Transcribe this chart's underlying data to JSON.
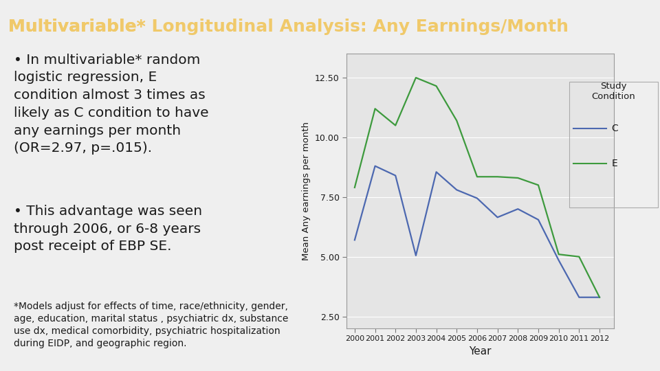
{
  "title_part1": "Multivariable* ",
  "title_underline": "Longitudinal Analysis",
  "title_part2": ": Any Earnings/Month",
  "title_color": "#F0C96A",
  "title_bg_color": "#8B0000",
  "bullet_text_1": "In multivariable* random\nlogistic regression, E\ncondition almost 3 times as\nlikely as C condition to have\nany earnings per month\n(OR=2.97, p=.015).",
  "bullet_text_2": "This advantage was seen\nthrough 2006, or 6-8 years\npost receipt of EBP SE.",
  "footnote": "*Models adjust for effects of time, race/ethnicity, gender,\nage, education, marital status , psychiatric dx, substance\nuse dx, medical comorbidity, psychiatric hospitalization\nduring EIDP, and geographic region.",
  "years": [
    2000,
    2001,
    2002,
    2003,
    2004,
    2005,
    2006,
    2007,
    2008,
    2009,
    2010,
    2011,
    2012
  ],
  "C_values": [
    5.7,
    8.8,
    8.4,
    5.05,
    8.55,
    7.8,
    7.45,
    6.65,
    7.0,
    6.55,
    4.85,
    3.3,
    3.3
  ],
  "E_values": [
    7.9,
    11.2,
    10.5,
    12.5,
    12.15,
    10.7,
    8.35,
    8.35,
    8.3,
    8.0,
    5.1,
    5.0,
    3.3
  ],
  "C_color": "#4C68B0",
  "E_color": "#3D9A3D",
  "ylabel": "Mean Any earnings per month",
  "xlabel": "Year",
  "ylim": [
    2.0,
    13.5
  ],
  "yticks": [
    2.5,
    5.0,
    7.5,
    10.0,
    12.5
  ],
  "legend_title": "Study\nCondition",
  "legend_labels": [
    "C",
    "E"
  ],
  "body_text_color": "#1A1A1A",
  "plot_bg_color": "#E5E5E5",
  "fig_bg_color": "#EFEFEF",
  "title_fontsize": 18,
  "bullet_fontsize": 14.5,
  "footnote_fontsize": 10.0
}
